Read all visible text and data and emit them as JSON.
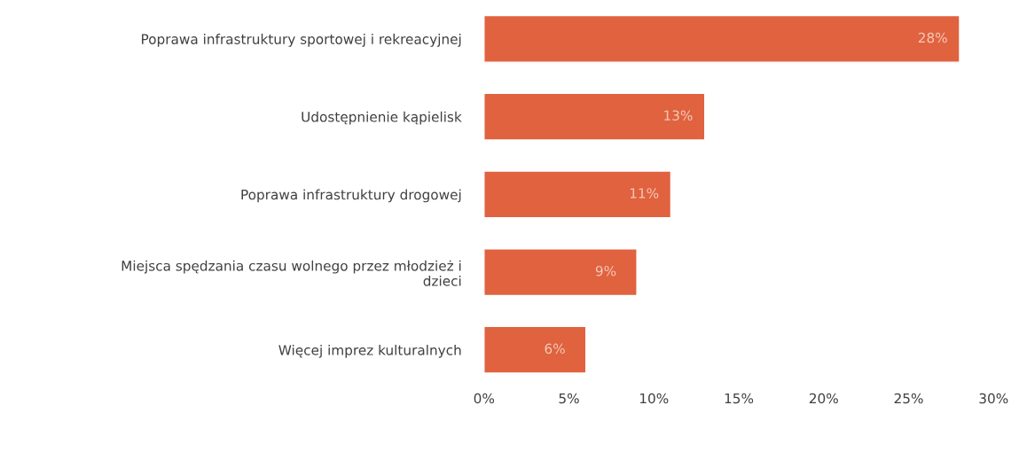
{
  "chart_data": {
    "type": "bar",
    "orientation": "horizontal",
    "categories": [
      "Poprawa infrastruktury sportowej i rekreacyjnej",
      "Udostępnienie kąpielisk",
      "Poprawa infrastruktury drogowej",
      "Miejsca spędzania czasu wolnego przez młodzież i\ndzieci",
      "Więcej imprez kulturalnych"
    ],
    "values": [
      28,
      13,
      11,
      9,
      6
    ],
    "value_labels": [
      "28%",
      "13%",
      "11%",
      "9%",
      "6%"
    ],
    "color": "#e0623f",
    "xlim": [
      0,
      30
    ],
    "xticks": [
      {
        "value": 0,
        "label": "0%"
      },
      {
        "value": 5,
        "label": "5%"
      },
      {
        "value": 10,
        "label": "10%"
      },
      {
        "value": 15,
        "label": "15%"
      },
      {
        "value": 20,
        "label": "20%"
      },
      {
        "value": 25,
        "label": "25%"
      },
      {
        "value": 30,
        "label": "30%"
      }
    ],
    "grid": false,
    "legend": false
  }
}
